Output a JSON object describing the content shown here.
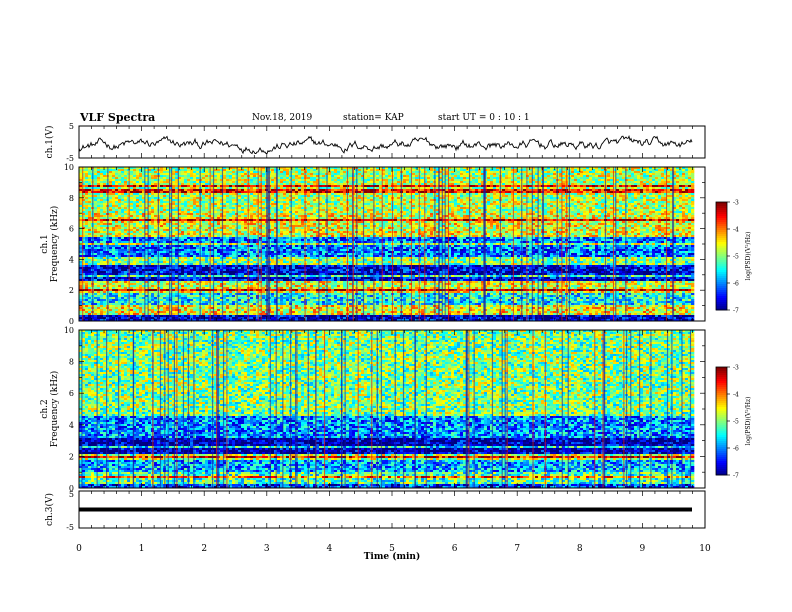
{
  "header": {
    "title": "VLF Spectra",
    "date": "Nov.18, 2019",
    "station": "station= KAP",
    "start": "start UT = 0 : 10 : 1"
  },
  "chart_data": [
    {
      "type": "line",
      "ylabel": "ch.1(V)",
      "ylim": [
        -5,
        5
      ],
      "yticks": [
        "5",
        "-5"
      ],
      "xlim": [
        0,
        10
      ],
      "note": "noisy waveform between about -3.5 and +1.5 V"
    },
    {
      "type": "heatmap",
      "ylabel": "ch.1\nFrequency (kHz)",
      "ylim": [
        0,
        10
      ],
      "yticks": [
        "0",
        "2",
        "4",
        "6",
        "8",
        "10"
      ],
      "xlim": [
        0,
        10
      ],
      "colorbar": {
        "label": "log(PSD)(V²/Hz)",
        "ticks": [
          "-3",
          "-4",
          "-5",
          "-6",
          "-7"
        ],
        "range": [
          -7,
          -3
        ]
      },
      "bands": [
        {
          "f0": 0.0,
          "f1": 0.4,
          "level": -6.7
        },
        {
          "f0": 0.4,
          "f1": 1.0,
          "level": -4.5
        },
        {
          "f0": 1.0,
          "f1": 1.8,
          "level": -5.5
        },
        {
          "f0": 1.8,
          "f1": 2.6,
          "level": -4.6
        },
        {
          "f0": 2.6,
          "f1": 3.6,
          "level": -6.6
        },
        {
          "f0": 3.6,
          "f1": 4.2,
          "level": -5.0
        },
        {
          "f0": 4.2,
          "f1": 5.4,
          "level": -6.0
        },
        {
          "f0": 5.4,
          "f1": 7.0,
          "level": -4.6
        },
        {
          "f0": 7.0,
          "f1": 10.0,
          "level": -4.8
        }
      ]
    },
    {
      "type": "heatmap",
      "ylabel": "ch.2\nFrequency (kHz)",
      "ylim": [
        0,
        10
      ],
      "yticks": [
        "0",
        "2",
        "4",
        "6",
        "8",
        "10"
      ],
      "xlim": [
        0,
        10
      ],
      "colorbar": {
        "label": "log(PSD)(V²/Hz)",
        "ticks": [
          "-3",
          "-4",
          "-5",
          "-6",
          "-7"
        ],
        "range": [
          -7,
          -3
        ]
      },
      "bands": [
        {
          "f0": 0.0,
          "f1": 0.3,
          "level": -6.3
        },
        {
          "f0": 0.3,
          "f1": 1.0,
          "level": -5.2
        },
        {
          "f0": 1.0,
          "f1": 1.8,
          "level": -5.8
        },
        {
          "f0": 1.8,
          "f1": 2.2,
          "level": -4.8
        },
        {
          "f0": 2.2,
          "f1": 3.2,
          "level": -6.8
        },
        {
          "f0": 3.2,
          "f1": 4.5,
          "level": -5.9
        },
        {
          "f0": 4.5,
          "f1": 10.0,
          "level": -5.0
        }
      ]
    },
    {
      "type": "line",
      "ylabel": "ch.3(V)",
      "ylim": [
        -5,
        5
      ],
      "yticks": [
        "5",
        "-5"
      ],
      "xlim": [
        0,
        10
      ],
      "value": 0,
      "xlabel": "Time (min)",
      "xticks": [
        "0",
        "1",
        "2",
        "3",
        "4",
        "5",
        "6",
        "7",
        "8",
        "9",
        "10"
      ]
    }
  ]
}
